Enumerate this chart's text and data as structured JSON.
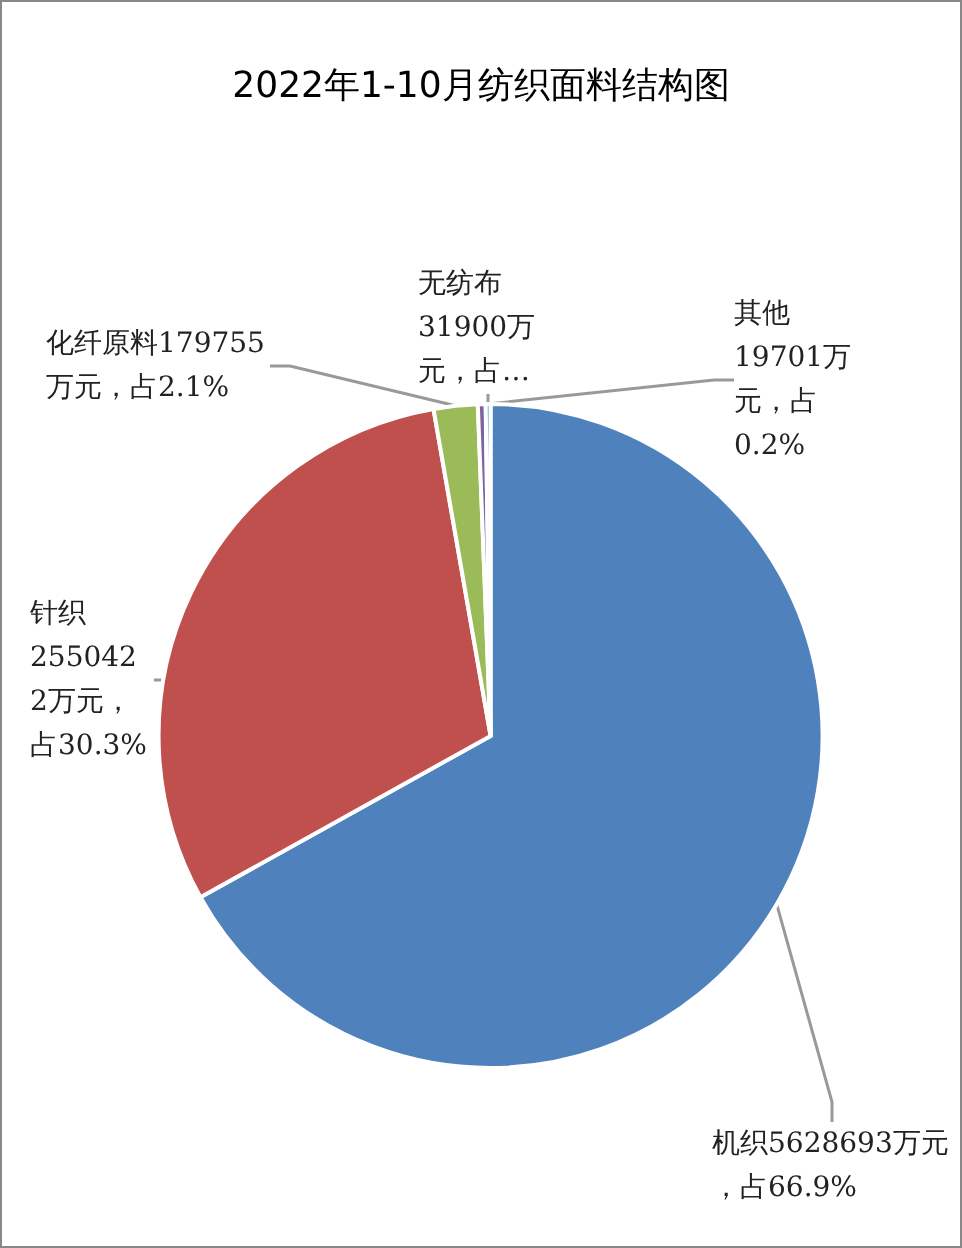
{
  "chart_data": {
    "type": "pie",
    "title": "2022年1-10月纺织面料结构图",
    "categories": [
      "机织",
      "针织",
      "化纤原料",
      "无纺布",
      "其他"
    ],
    "values": [
      5628693,
      2550422,
      179755,
      31900,
      19701
    ],
    "value_labels": [
      "5628693万元，占66.9%",
      "2550422万元，占30.3%",
      "179755万元，占2.1%",
      "31900万元，占…",
      "19701万元，占0.2%"
    ],
    "colors": [
      "#4f81bd",
      "#c0504d",
      "#9bbb59",
      "#8064a2",
      "#4bacc6"
    ],
    "legend": false
  }
}
